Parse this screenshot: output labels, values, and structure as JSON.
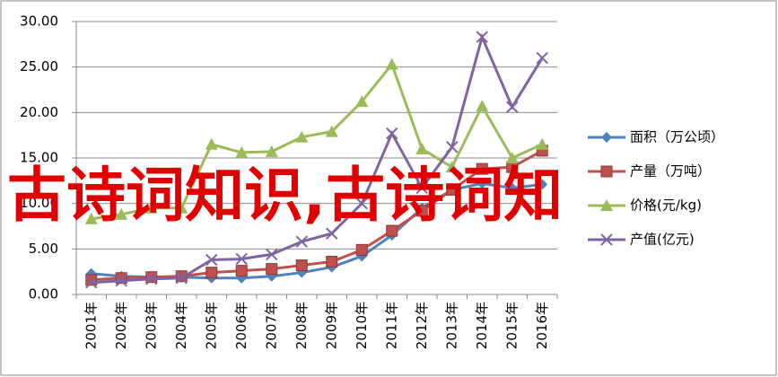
{
  "chart_data": {
    "type": "line",
    "categories": [
      "2001年",
      "2002年",
      "2003年",
      "2004年",
      "2005年",
      "2006年",
      "2007年",
      "2008年",
      "2009年",
      "2010年",
      "2011年",
      "2012年",
      "2013年",
      "2014年",
      "2015年",
      "2016年"
    ],
    "series": [
      {
        "name": "面积（万公顷）",
        "color": "#4f81bd",
        "marker": "diamond",
        "values": [
          2.3,
          2.0,
          1.9,
          1.9,
          1.8,
          1.8,
          2.0,
          2.4,
          3.0,
          4.2,
          6.5,
          9.5,
          11.5,
          12.2,
          11.7,
          12.1
        ]
      },
      {
        "name": "产量（万吨）",
        "color": "#c0504d",
        "marker": "square",
        "values": [
          1.6,
          1.8,
          1.9,
          2.0,
          2.4,
          2.6,
          2.8,
          3.2,
          3.6,
          4.9,
          7.0,
          9.2,
          11.5,
          13.8,
          14.0,
          15.8
        ]
      },
      {
        "name": "价格(元/kg)",
        "color": "#9bbb59",
        "marker": "triangle",
        "values": [
          8.3,
          8.8,
          9.5,
          9.5,
          16.5,
          15.6,
          15.7,
          17.3,
          17.9,
          21.2,
          25.3,
          16.0,
          14.0,
          20.7,
          15.0,
          16.5
        ]
      },
      {
        "name": "产值(亿元)",
        "color": "#8064a2",
        "marker": "x",
        "values": [
          1.3,
          1.5,
          1.7,
          1.8,
          3.8,
          3.9,
          4.4,
          5.8,
          6.7,
          10.0,
          17.7,
          11.7,
          16.2,
          28.3,
          20.6,
          26.0
        ]
      }
    ],
    "ylim": [
      0,
      30
    ],
    "yticks": [
      {
        "value": 0,
        "label": "0.00"
      },
      {
        "value": 5,
        "label": "5.00"
      },
      {
        "value": 10,
        "label": "10.00"
      },
      {
        "value": 15,
        "label": "15.00"
      },
      {
        "value": 20,
        "label": "20.00"
      },
      {
        "value": 25,
        "label": "25.00"
      },
      {
        "value": 30,
        "label": "30.00"
      }
    ],
    "grid": true,
    "legend": "right"
  },
  "watermark": "古诗词知识,古诗词知"
}
